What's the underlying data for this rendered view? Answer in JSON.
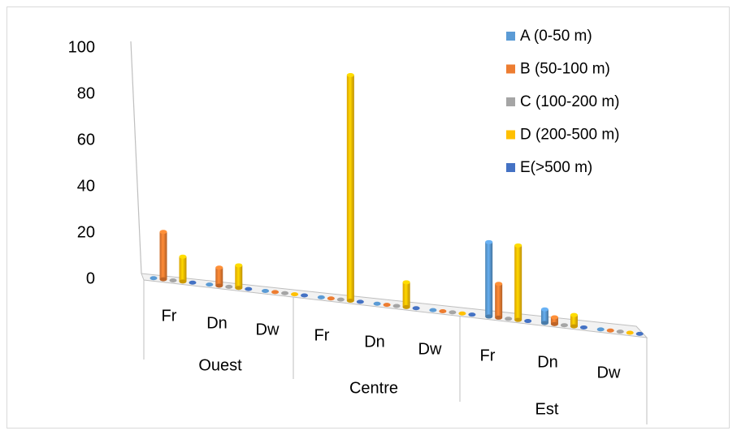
{
  "chart_data": {
    "type": "bar",
    "y_ticks": [
      "100",
      "80",
      "60",
      "40",
      "20",
      "0"
    ],
    "ylim": [
      0,
      100
    ],
    "grid": false,
    "legend_position": "top-right",
    "groups": [
      "Ouest",
      "Centre",
      "Est"
    ],
    "sub_categories": [
      "Fr",
      "Dn",
      "Dw"
    ],
    "categories": [
      "Ouest Fr",
      "Ouest Dn",
      "Ouest Dw",
      "Centre Fr",
      "Centre Dn",
      "Centre Dw",
      "Est Fr",
      "Est Dn",
      "Est Dw"
    ],
    "series": [
      {
        "name": "A (0-50 m)",
        "color": "#5b9bd5",
        "values": [
          0,
          0,
          0,
          0,
          0,
          0,
          33,
          6,
          0
        ]
      },
      {
        "name": "B (50-100 m)",
        "color": "#ed7d31",
        "values": [
          21,
          8,
          0,
          0,
          0,
          0,
          15,
          3,
          0
        ]
      },
      {
        "name": "C (100-200 m)",
        "color": "#a5a5a5",
        "values": [
          0,
          0,
          0,
          0,
          0,
          0,
          0,
          0,
          0
        ]
      },
      {
        "name": "D (200-500 m)",
        "color": "#ffc000",
        "values": [
          11,
          10,
          0,
          100,
          11,
          0,
          33,
          5,
          0
        ]
      },
      {
        "name": "E(>500 m)",
        "color": "#4472c4",
        "values": [
          0,
          0,
          0,
          0,
          0,
          0,
          0,
          0,
          0
        ]
      }
    ]
  }
}
